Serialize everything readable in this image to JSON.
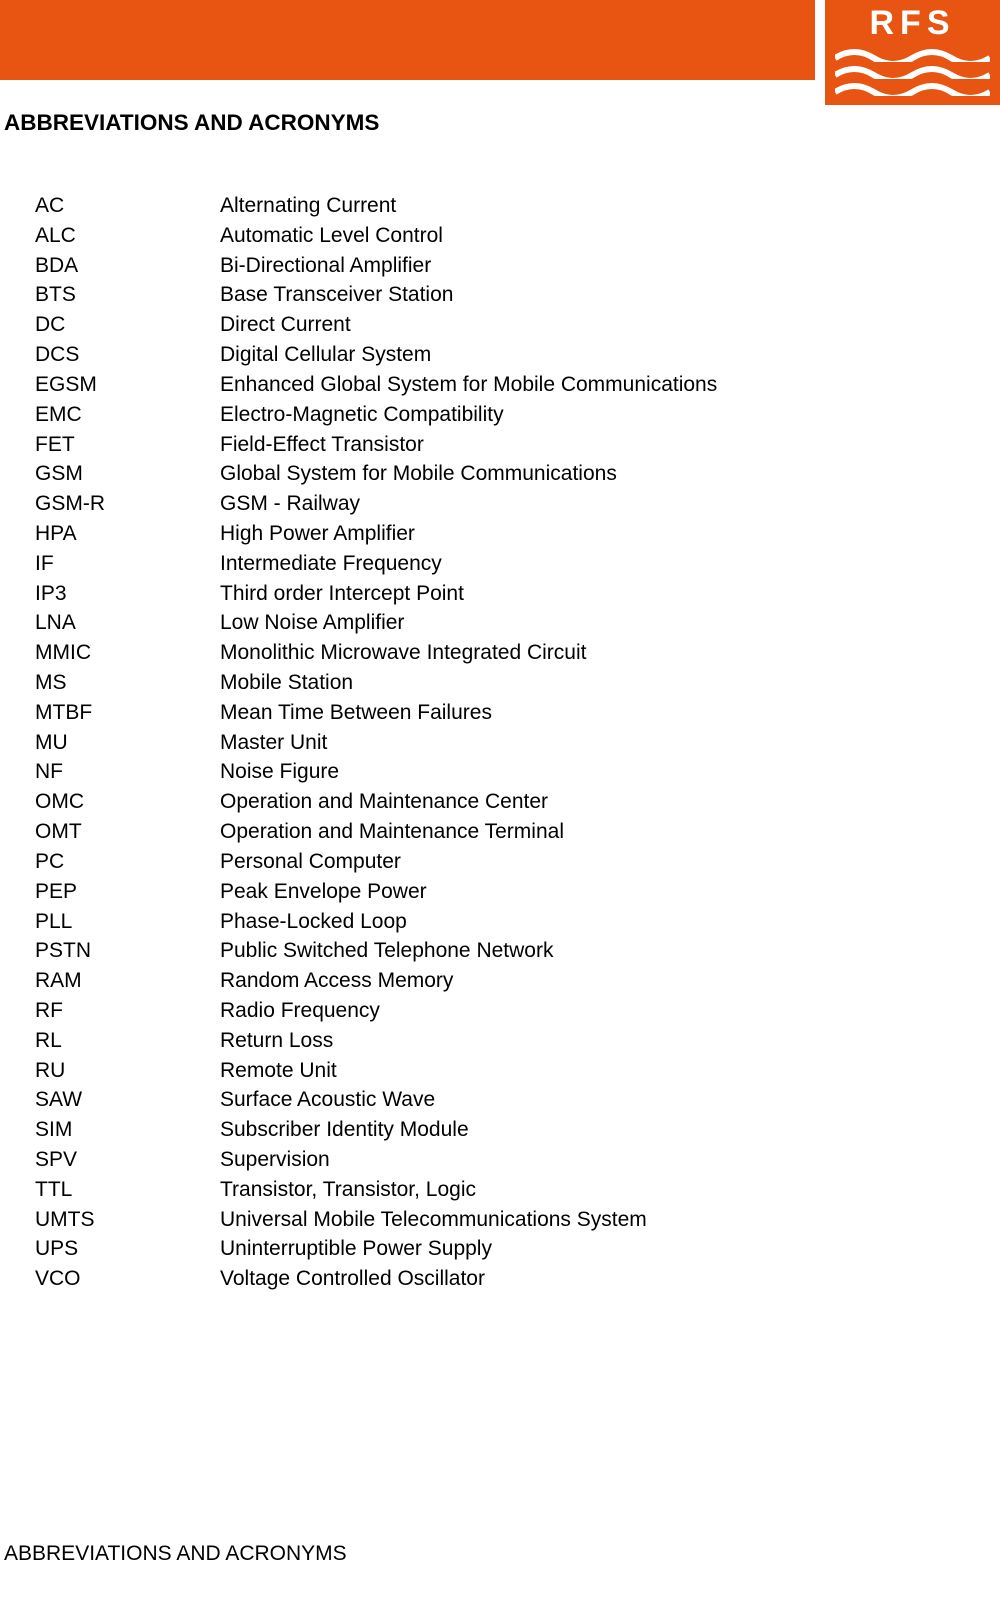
{
  "brand": {
    "name": "RFS"
  },
  "header": {
    "orange": "#e85412",
    "white": "#ffffff"
  },
  "title": "ABBREVIATIONS AND ACRONYMS",
  "footer": "ABBREVIATIONS AND ACRONYMS",
  "abbrevs": [
    {
      "term": "AC",
      "def": "Alternating Current"
    },
    {
      "term": "ALC",
      "def": "Automatic Level Control"
    },
    {
      "term": "BDA",
      "def": "Bi-Directional Amplifier"
    },
    {
      "term": "BTS",
      "def": "Base Transceiver Station"
    },
    {
      "term": "DC",
      "def": "Direct Current"
    },
    {
      "term": "DCS",
      "def": "Digital Cellular System"
    },
    {
      "term": "EGSM",
      "def": "Enhanced Global System for Mobile Communications"
    },
    {
      "term": "EMC",
      "def": "Electro-Magnetic Compatibility"
    },
    {
      "term": "FET",
      "def": "Field-Effect Transistor"
    },
    {
      "term": "GSM",
      "def": "Global System for Mobile Communications"
    },
    {
      "term": "GSM-R",
      "def": "GSM - Railway"
    },
    {
      "term": "HPA",
      "def": "High Power Amplifier"
    },
    {
      "term": "IF",
      "def": "Intermediate Frequency"
    },
    {
      "term": "IP3",
      "def": "Third order Intercept Point"
    },
    {
      "term": "LNA",
      "def": "Low Noise Amplifier"
    },
    {
      "term": "MMIC",
      "def": "Monolithic Microwave Integrated Circuit"
    },
    {
      "term": "MS",
      "def": "Mobile Station"
    },
    {
      "term": "MTBF",
      "def": "Mean Time Between Failures"
    },
    {
      "term": "MU",
      "def": "Master Unit"
    },
    {
      "term": "NF",
      "def": "Noise Figure"
    },
    {
      "term": "OMC",
      "def": "Operation and Maintenance Center"
    },
    {
      "term": "OMT",
      "def": "Operation and Maintenance Terminal"
    },
    {
      "term": "PC",
      "def": "Personal Computer"
    },
    {
      "term": "PEP",
      "def": "Peak Envelope Power"
    },
    {
      "term": "PLL",
      "def": "Phase-Locked Loop"
    },
    {
      "term": "PSTN",
      "def": "Public Switched Telephone Network"
    },
    {
      "term": "RAM",
      "def": "Random Access Memory"
    },
    {
      "term": "RF",
      "def": "Radio Frequency"
    },
    {
      "term": "RL",
      "def": "Return Loss"
    },
    {
      "term": "RU",
      "def": "Remote Unit"
    },
    {
      "term": "SAW",
      "def": "Surface Acoustic Wave"
    },
    {
      "term": "SIM",
      "def": "Subscriber Identity Module"
    },
    {
      "term": "SPV",
      "def": "Supervision"
    },
    {
      "term": "TTL",
      "def": "Transistor, Transistor, Logic"
    },
    {
      "term": "UMTS",
      "def": "Universal Mobile Telecommunications System"
    },
    {
      "term": "UPS",
      "def": "Uninterruptible Power Supply"
    },
    {
      "term": "VCO",
      "def": "Voltage Controlled Oscillator"
    }
  ]
}
